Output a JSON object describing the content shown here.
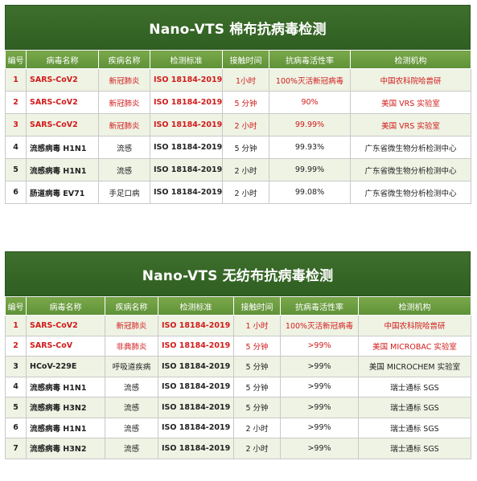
{
  "table1": {
    "title": "Nano-VTS 棉布抗病毒检测",
    "headers": [
      "编号",
      "病毒名称",
      "疾病名称",
      "检测标准",
      "接触时间",
      "抗病毒活性率",
      "检测机构"
    ],
    "rows": [
      {
        "id": "1",
        "virus": "SARS-CoV2",
        "disease": "新冠肺炎",
        "standard": "ISO 18184-2019",
        "time": "1小时",
        "rate": "100%灭活新冠病毒",
        "lab": "中国农科院哈兽研"
      },
      {
        "id": "2",
        "virus": "SARS-CoV2",
        "disease": "新冠肺炎",
        "standard": "ISO 18184-2019",
        "time": "5 分钟",
        "rate": "90%",
        "lab": "美国 VRS 实验室"
      },
      {
        "id": "3",
        "virus": "SARS-CoV2",
        "disease": "新冠肺炎",
        "standard": "ISO 18184-2019",
        "time": "2 小时",
        "rate": "99.99%",
        "lab": "美国 VRS 实验室"
      },
      {
        "id": "4",
        "virus": "流感病毒  H1N1",
        "disease": "流感",
        "standard": "ISO 18184-2019",
        "time": "5 分钟",
        "rate": "99.93%",
        "lab": "广东省微生物分析检测中心"
      },
      {
        "id": "5",
        "virus": "流感病毒  H1N1",
        "disease": "流感",
        "standard": "ISO 18184-2019",
        "time": "2 小时",
        "rate": "99.99%",
        "lab": "广东省微生物分析检测中心"
      },
      {
        "id": "6",
        "virus": "肠道病毒  EV71",
        "disease": "手足口病",
        "standard": "ISO 18184-2019",
        "time": "2 小时",
        "rate": "99.08%",
        "lab": "广东省微生物分析检测中心"
      }
    ]
  },
  "table2": {
    "title": "Nano-VTS 无纺布抗病毒检测",
    "headers": [
      "编号",
      "病毒名称",
      "疾病名称",
      "检测标准",
      "接触时间",
      "抗病毒活性率",
      "检测机构"
    ],
    "rows": [
      {
        "id": "1",
        "virus": "SARS-CoV2",
        "disease": "新冠肺炎",
        "standard": "ISO 18184-2019",
        "time": "1 小时",
        "rate": "100%灭活新冠病毒",
        "lab": "中国农科院哈兽研"
      },
      {
        "id": "2",
        "virus": "SARS-CoV",
        "disease": "非典肺炎",
        "standard": "ISO 18184-2019",
        "time": "5 分钟",
        "rate": ">99%",
        "lab": "美国 MICROBAC 实验室"
      },
      {
        "id": "3",
        "virus": "HCoV-229E",
        "disease": "呼吸道疾病",
        "standard": "ISO 18184-2019",
        "time": "5 分钟",
        "rate": ">99%",
        "lab": "美国 MICROCHEM 实验室"
      },
      {
        "id": "4",
        "virus": "流感病毒 H1N1",
        "disease": "流感",
        "standard": "ISO 18184-2019",
        "time": "5 分钟",
        "rate": ">99%",
        "lab": "瑞士通标 SGS"
      },
      {
        "id": "5",
        "virus": "流感病毒 H3N2",
        "disease": "流感",
        "standard": "ISO 18184-2019",
        "time": "5 分钟",
        "rate": ">99%",
        "lab": "瑞士通标 SGS"
      },
      {
        "id": "6",
        "virus": "流感病毒 H1N1",
        "disease": "流感",
        "standard": "ISO 18184-2019",
        "time": "2 小时",
        "rate": ">99%",
        "lab": "瑞士通标 SGS"
      },
      {
        "id": "7",
        "virus": "流感病毒 H3N2",
        "disease": "流感",
        "standard": "ISO 18184-2019",
        "time": "2 小时",
        "rate": ">99%",
        "lab": "瑞士通标 SGS"
      }
    ]
  },
  "colors": {
    "title_bg": "#2f5f22",
    "header_bg": "#6a9c40",
    "highlight_text": "#d21a1a",
    "alt_row_bg": "#eef3e4"
  }
}
